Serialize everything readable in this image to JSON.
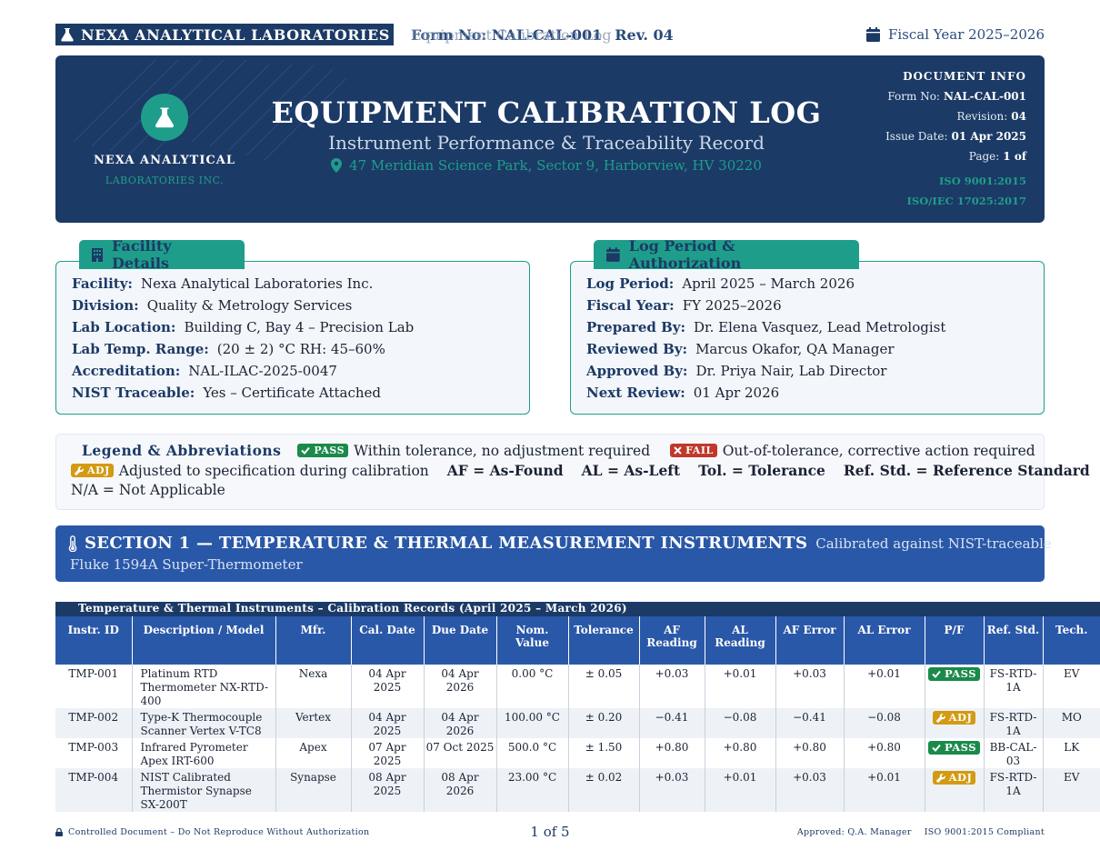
{
  "header": {
    "brand": "NEXA ANALYTICAL LABORATORIES",
    "form_ghost": "Equipment Calibration Log",
    "form_no": "Form No: NAL-CAL-001",
    "rev": "Rev. 04",
    "fiscal": "Fiscal Year 2025–2026"
  },
  "banner": {
    "logo_name": "NEXA ANALYTICAL",
    "logo_sub": "LABORATORIES INC.",
    "title": "EQUIPMENT CALIBRATION LOG",
    "subtitle": "Instrument Performance & Traceability Record",
    "address": "47 Meridian Science Park, Sector 9, Harborview, HV 30220",
    "docinfo": {
      "heading": "DOCUMENT INFO",
      "form_no_label": "Form No:",
      "form_no": "NAL-CAL-001",
      "revision_label": "Revision:",
      "revision": "04",
      "issue_label": "Issue Date:",
      "issue": "01 Apr 2025",
      "page_label": "Page:",
      "page": "1 of",
      "iso1": "ISO 9001:2015",
      "iso2": "ISO/IEC 17025:2017"
    }
  },
  "facility": {
    "tab": "Facility Details",
    "rows": [
      {
        "k": "Facility:",
        "v": "Nexa Analytical Laboratories Inc."
      },
      {
        "k": "Division:",
        "v": "Quality & Metrology Services"
      },
      {
        "k": "Lab Location:",
        "v": "Building C, Bay 4 – Precision Lab"
      },
      {
        "k": "Lab Temp. Range:",
        "v": "(20 ± 2) °C    RH: 45–60%"
      },
      {
        "k": "Accreditation:",
        "v": "NAL-ILAC-2025-0047"
      },
      {
        "k": "NIST Traceable:",
        "v": "Yes – Certificate Attached"
      }
    ]
  },
  "authorization": {
    "tab": "Log Period & Authorization",
    "rows": [
      {
        "k": "Log Period:",
        "v": "April 2025 – March 2026"
      },
      {
        "k": "Fiscal Year:",
        "v": "FY 2025–2026"
      },
      {
        "k": "Prepared By:",
        "v": "Dr. Elena Vasquez, Lead Metrologist"
      },
      {
        "k": "Reviewed By:",
        "v": "Marcus Okafor, QA Manager"
      },
      {
        "k": "Approved By:",
        "v": "Dr. Priya Nair, Lab Director"
      },
      {
        "k": "Next Review:",
        "v": "01 Apr 2026"
      }
    ]
  },
  "legend": {
    "title": "Legend & Abbreviations",
    "pass_badge": "PASS",
    "pass_text": "Within tolerance, no adjustment required",
    "fail_badge": "FAIL",
    "fail_text": "Out-of-tolerance, corrective action required",
    "adj_badge": "ADJ",
    "adj_text": "Adjusted to specification during calibration",
    "abbr_af": "AF = As-Found",
    "abbr_al": "AL = As-Left",
    "abbr_tol": "Tol. = Tolerance",
    "abbr_ref": "Ref. Std. = Reference Standard",
    "abbr_na": "N/A = Not Applicable"
  },
  "section1": {
    "title": "SECTION 1 — TEMPERATURE & THERMAL MEASUREMENT INSTRUMENTS",
    "note": "Calibrated against NIST-traceable",
    "note2": "Fluke 1594A Super-Thermometer"
  },
  "table": {
    "caption": "Temperature & Thermal Instruments – Calibration Records (April 2025 – March 2026)",
    "columns": [
      "Instr. ID",
      "Description / Model",
      "Mfr.",
      "Cal. Date",
      "Due Date",
      "Nom. Value",
      "Tolerance",
      "AF Reading",
      "AL Reading",
      "AF Error",
      "AL Error",
      "P/F",
      "Ref. Std.",
      "Tech."
    ],
    "rows": [
      {
        "id": "TMP-001",
        "desc": "Platinum RTD Thermometer NX-RTD-400",
        "mfr": "Nexa",
        "cal": "04 Apr 2025",
        "due": "04 Apr 2026",
        "nom": "0.00 °C",
        "tol": "± 0.05",
        "af": "+0.03",
        "al": "+0.01",
        "af_err": "+0.03",
        "al_err": "+0.01",
        "pf": "PASS",
        "ref": "FS-RTD-1A",
        "tech": "EV"
      },
      {
        "id": "TMP-002",
        "desc": "Type-K Thermocouple Scanner Vertex V-TC8",
        "mfr": "Vertex",
        "cal": "04 Apr 2025",
        "due": "04 Apr 2026",
        "nom": "100.00 °C",
        "tol": "± 0.20",
        "af": "−0.41",
        "al": "−0.08",
        "af_err": "−0.41",
        "al_err": "−0.08",
        "pf": "ADJ",
        "ref": "FS-RTD-1A",
        "tech": "MO"
      },
      {
        "id": "TMP-003",
        "desc": "Infrared Pyrometer Apex IRT-600",
        "mfr": "Apex",
        "cal": "07 Apr 2025",
        "due": "07 Oct 2025",
        "nom": "500.0 °C",
        "tol": "± 1.50",
        "af": "+0.80",
        "al": "+0.80",
        "af_err": "+0.80",
        "al_err": "+0.80",
        "pf": "PASS",
        "ref": "BB-CAL-03",
        "tech": "LK"
      },
      {
        "id": "TMP-004",
        "desc": "NIST Calibrated Thermistor Synapse SX-200T",
        "mfr": "Synapse",
        "cal": "08 Apr 2025",
        "due": "08 Apr 2026",
        "nom": "23.00 °C",
        "tol": "± 0.02",
        "af": "+0.03",
        "al": "+0.01",
        "af_err": "+0.03",
        "al_err": "+0.01",
        "pf": "ADJ",
        "ref": "FS-RTD-1A",
        "tech": "EV"
      }
    ]
  },
  "footer": {
    "left": "Controlled Document – Do Not Reproduce Without Authorization",
    "center": "1 of 5",
    "right_a": "Approved: Q.A. Manager",
    "right_b": "ISO 9001:2015 Compliant"
  },
  "colors": {
    "navy": "#1c3a66",
    "blue": "#2a58a8",
    "teal": "#1e9e8a",
    "pass": "#1a8a4a",
    "fail": "#c0392b",
    "adj": "#d39a12"
  },
  "icons": [
    "flask-icon",
    "calendar-icon",
    "map-pin-icon",
    "building-icon",
    "info-icon",
    "check-icon",
    "x-icon",
    "wrench-icon",
    "thermometer-icon",
    "lock-icon"
  ]
}
